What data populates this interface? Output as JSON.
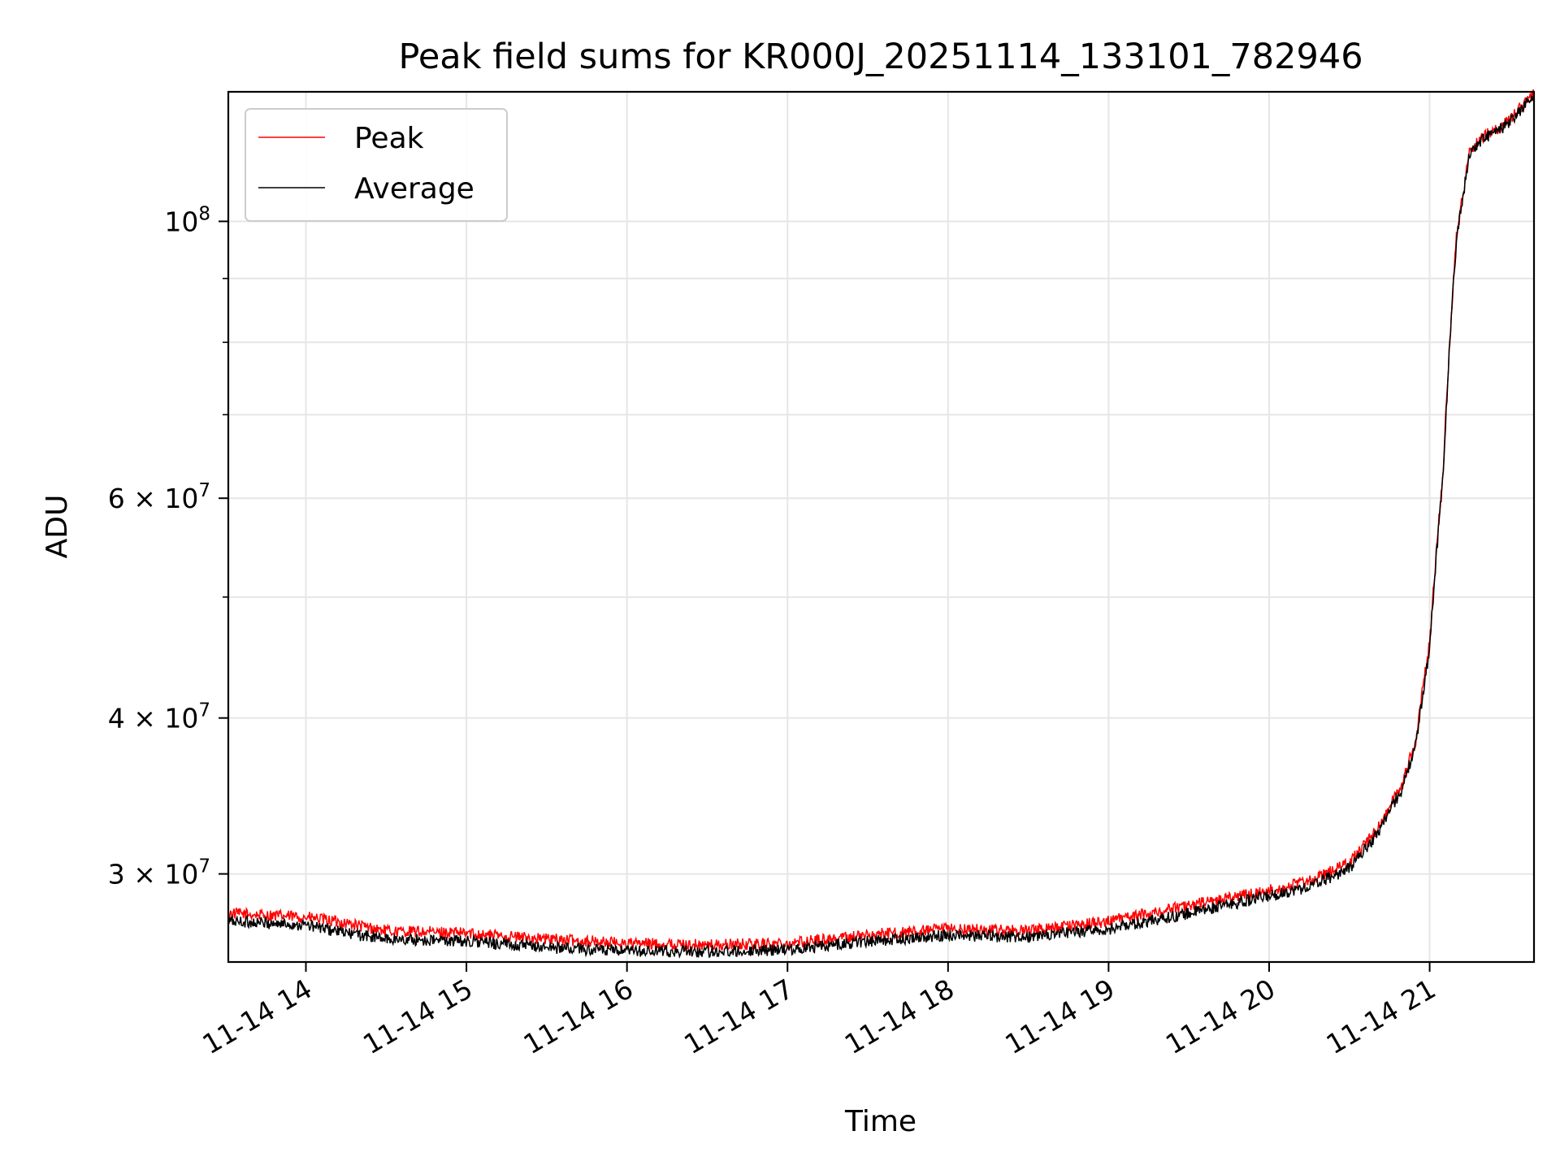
{
  "chart_data": {
    "type": "line",
    "title": "Peak field sums for KR000J_20251114_133101_782946",
    "xlabel": "Time",
    "ylabel": "ADU",
    "yscale": "log",
    "grid": true,
    "legend_position": "upper-left",
    "xlim": [
      "2025-11-14 13:31",
      "2025-11-14 21:39"
    ],
    "ylim": [
      25500000,
      127000000
    ],
    "x_ticks": [
      {
        "value": "2025-11-14 14:00",
        "label": "11-14 14"
      },
      {
        "value": "2025-11-14 15:00",
        "label": "11-14 15"
      },
      {
        "value": "2025-11-14 16:00",
        "label": "11-14 16"
      },
      {
        "value": "2025-11-14 17:00",
        "label": "11-14 17"
      },
      {
        "value": "2025-11-14 18:00",
        "label": "11-14 18"
      },
      {
        "value": "2025-11-14 19:00",
        "label": "11-14 19"
      },
      {
        "value": "2025-11-14 20:00",
        "label": "11-14 20"
      },
      {
        "value": "2025-11-14 21:00",
        "label": "11-14 21"
      }
    ],
    "y_major_ticks": [
      {
        "value": 30000000,
        "base": "3 × 10",
        "exp": "7"
      },
      {
        "value": 40000000,
        "base": "4 × 10",
        "exp": "7"
      },
      {
        "value": 60000000,
        "base": "6 × 10",
        "exp": "7"
      },
      {
        "value": 100000000,
        "base": "10",
        "exp": "8"
      }
    ],
    "y_minor_ticks": [
      50000000,
      70000000,
      80000000,
      90000000
    ],
    "series": [
      {
        "name": "Peak",
        "color": "#ff0000",
        "x": [
          "2025-11-14 13:31",
          "2025-11-14 13:45",
          "2025-11-14 14:00",
          "2025-11-14 14:15",
          "2025-11-14 14:30",
          "2025-11-14 15:00",
          "2025-11-14 15:30",
          "2025-11-14 16:00",
          "2025-11-14 16:30",
          "2025-11-14 17:00",
          "2025-11-14 17:30",
          "2025-11-14 18:00",
          "2025-11-14 18:30",
          "2025-11-14 19:00",
          "2025-11-14 19:30",
          "2025-11-14 20:00",
          "2025-11-14 20:15",
          "2025-11-14 20:30",
          "2025-11-14 20:40",
          "2025-11-14 20:50",
          "2025-11-14 20:55",
          "2025-11-14 21:00",
          "2025-11-14 21:05",
          "2025-11-14 21:10",
          "2025-11-14 21:15",
          "2025-11-14 21:20",
          "2025-11-14 21:25",
          "2025-11-14 21:30",
          "2025-11-14 21:35",
          "2025-11-14 21:39"
        ],
        "y": [
          27900000,
          27800000,
          27700000,
          27400000,
          27000000,
          26900000,
          26600000,
          26400000,
          26300000,
          26400000,
          26800000,
          27100000,
          27000000,
          27500000,
          28300000,
          29100000,
          29600000,
          30600000,
          32500000,
          35500000,
          38500000,
          46000000,
          63000000,
          97000000,
          114000000,
          117000000,
          118500000,
          120500000,
          124000000,
          126500000
        ]
      },
      {
        "name": "Average",
        "color": "#000000",
        "x": [
          "2025-11-14 13:31",
          "2025-11-14 13:45",
          "2025-11-14 14:00",
          "2025-11-14 14:15",
          "2025-11-14 14:30",
          "2025-11-14 15:00",
          "2025-11-14 15:30",
          "2025-11-14 16:00",
          "2025-11-14 16:30",
          "2025-11-14 17:00",
          "2025-11-14 17:30",
          "2025-11-14 18:00",
          "2025-11-14 18:30",
          "2025-11-14 19:00",
          "2025-11-14 19:30",
          "2025-11-14 20:00",
          "2025-11-14 20:15",
          "2025-11-14 20:30",
          "2025-11-14 20:40",
          "2025-11-14 20:50",
          "2025-11-14 20:55",
          "2025-11-14 21:00",
          "2025-11-14 21:05",
          "2025-11-14 21:10",
          "2025-11-14 21:15",
          "2025-11-14 21:20",
          "2025-11-14 21:25",
          "2025-11-14 21:30",
          "2025-11-14 21:35",
          "2025-11-14 21:39"
        ],
        "y": [
          27500000,
          27400000,
          27300000,
          26900000,
          26600000,
          26500000,
          26200000,
          26000000,
          26000000,
          26100000,
          26500000,
          26800000,
          26700000,
          27100000,
          27900000,
          28800000,
          29300000,
          30300000,
          32200000,
          35200000,
          38200000,
          45500000,
          62500000,
          96500000,
          113500000,
          116500000,
          118000000,
          120000000,
          123500000,
          126000000
        ]
      }
    ]
  }
}
